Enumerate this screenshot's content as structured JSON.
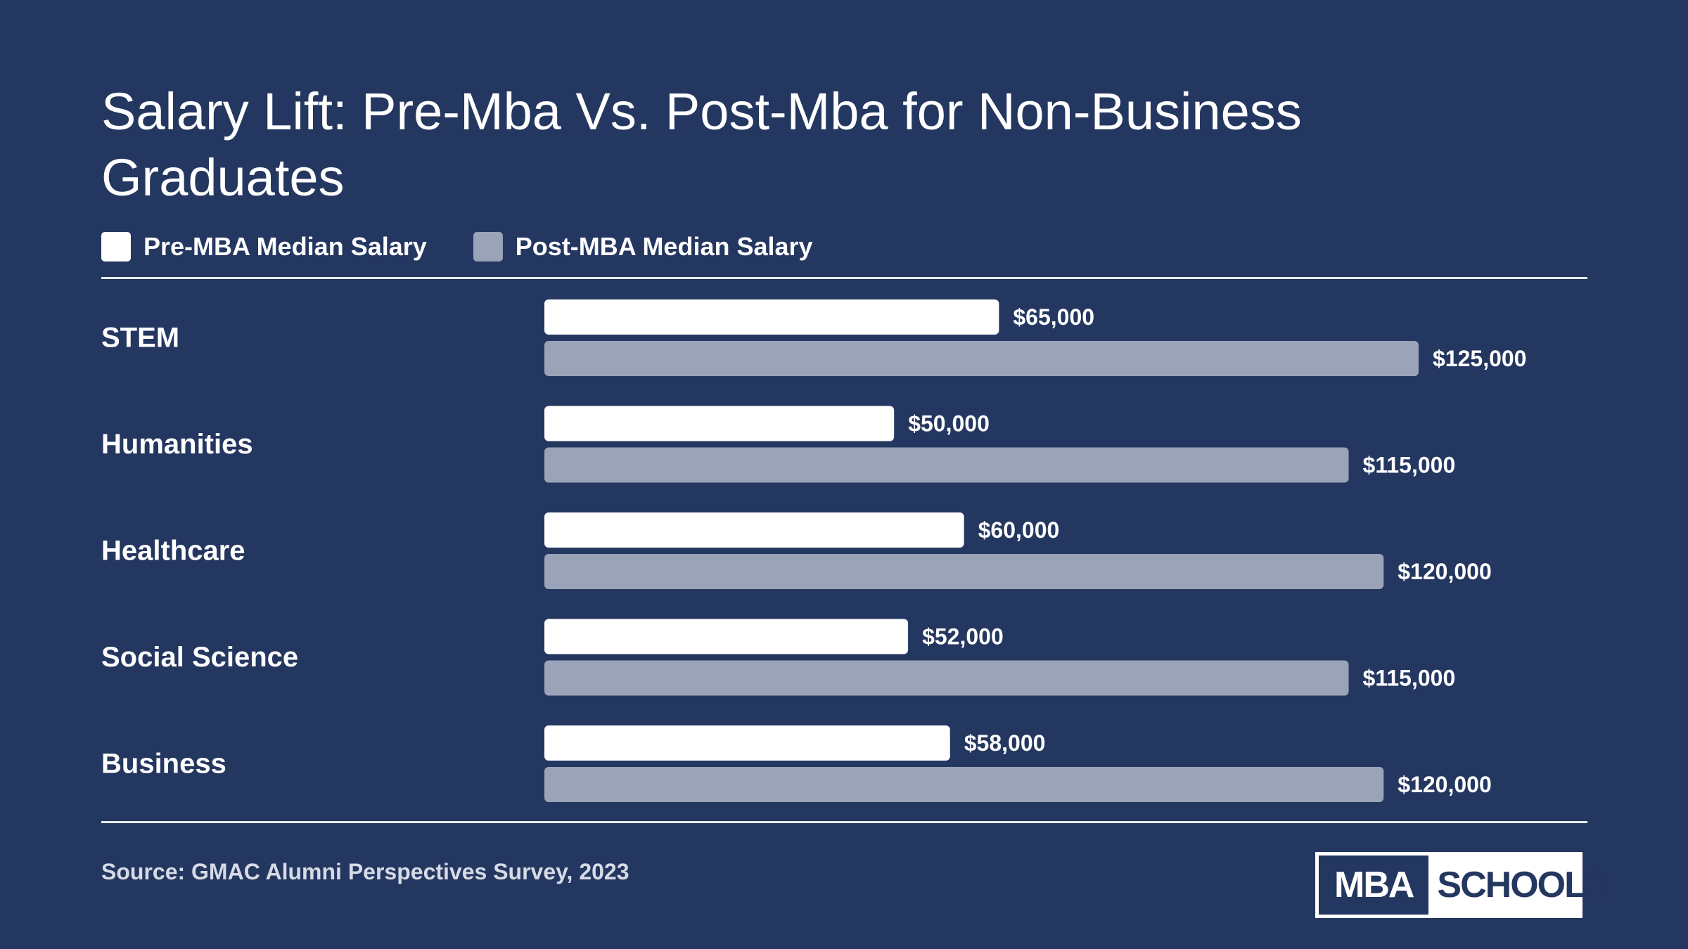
{
  "title": "Salary Lift: Pre-Mba Vs. Post-Mba for Non-Business Graduates",
  "source": "Source: GMAC Alumni Perspectives Survey, 2023",
  "logo": {
    "left": "MBA",
    "right": "SCHOOLS"
  },
  "colors": {
    "background": "#243760",
    "pre": "#ffffff",
    "post": "#9aa3b8"
  },
  "chart_data": {
    "type": "bar",
    "orientation": "horizontal",
    "categories": [
      "STEM",
      "Humanities",
      "Healthcare",
      "Social Science",
      "Business"
    ],
    "series": [
      {
        "name": "Pre-MBA Median Salary",
        "values": [
          65000,
          50000,
          60000,
          52000,
          58000
        ],
        "labels": [
          "$65,000",
          "$50,000",
          "$60,000",
          "$52,000",
          "$58,000"
        ]
      },
      {
        "name": "Post-MBA Median Salary",
        "values": [
          125000,
          115000,
          120000,
          115000,
          120000
        ],
        "labels": [
          "$125,000",
          "$115,000",
          "$120,000",
          "$115,000",
          "$120,000"
        ]
      }
    ],
    "xlim": [
      0,
      125000
    ],
    "grid": false,
    "legend": "top-left"
  }
}
